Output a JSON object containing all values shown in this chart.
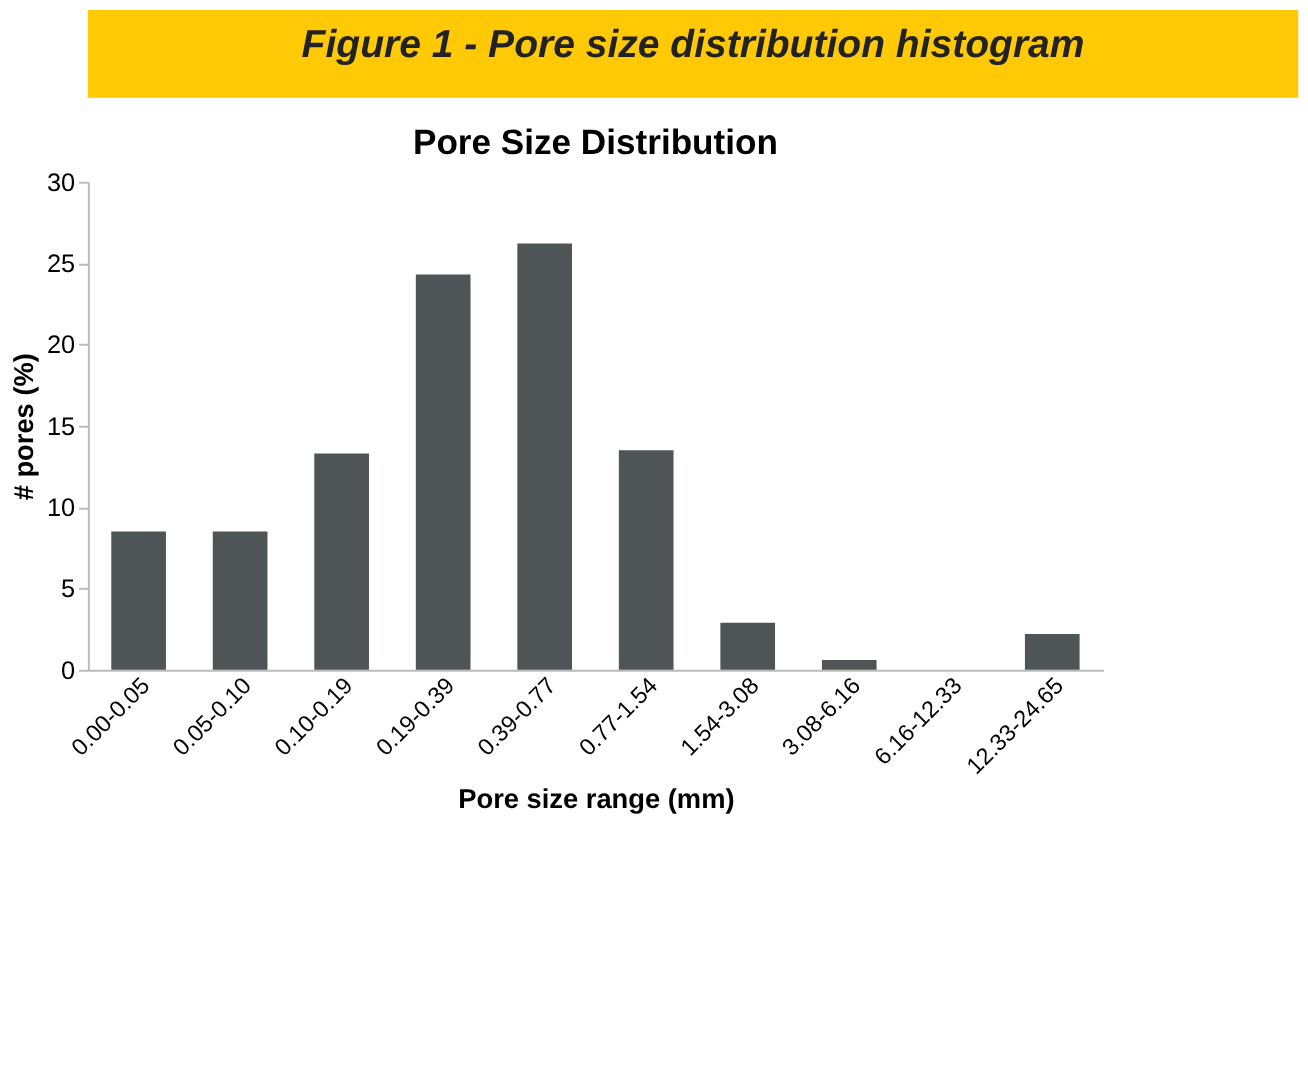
{
  "chart_data": {
    "type": "bar",
    "title": "Pore Size Distribution",
    "annotations": [
      "Figure 1 - Pore size distribution histogram"
    ],
    "categories": [
      "0.00-0.05",
      "0.05-0.10",
      "0.10-0.19",
      "0.19-0.39",
      "0.39-0.77",
      "0.77-1.54",
      "1.54-3.08",
      "3.08-6.16",
      "6.16-12.33",
      "12.33-24.65"
    ],
    "values": [
      8.5,
      8.5,
      13.3,
      24.3,
      26.2,
      13.5,
      2.9,
      0.6,
      0,
      2.2
    ],
    "color": "#4f5557",
    "xlabel": "Pore size range (mm)",
    "ylabel": "# pores (%)",
    "ylim": [
      0,
      30
    ],
    "yticks": [
      0,
      5,
      10,
      15,
      20,
      25,
      30
    ],
    "grid": false
  }
}
